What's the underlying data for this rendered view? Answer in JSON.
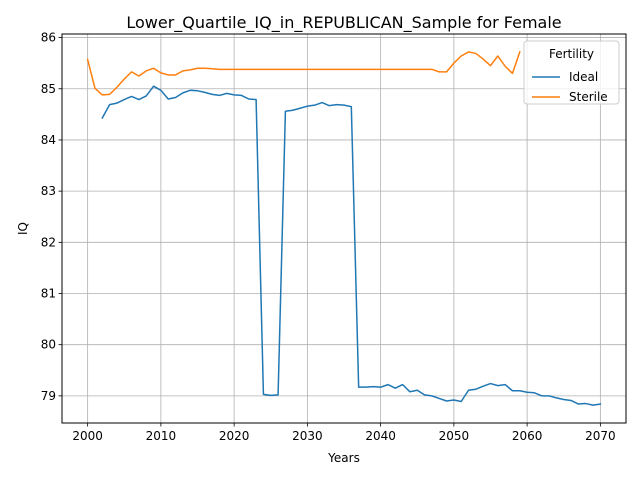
{
  "chart_data": {
    "type": "line",
    "title": "Lower_Quartile_IQ_in_REPUBLICAN_Sample for Female",
    "xlabel": "Years",
    "ylabel": "IQ",
    "xlim": [
      1996.5,
      2073.5
    ],
    "ylim": [
      78.47,
      86.07
    ],
    "x_ticks": [
      2000,
      2010,
      2020,
      2030,
      2040,
      2050,
      2060,
      2070
    ],
    "y_ticks": [
      79,
      80,
      81,
      82,
      83,
      84,
      85,
      86
    ],
    "grid": true,
    "legend": {
      "title": "Fertility",
      "position": "top-right"
    },
    "series": [
      {
        "name": "Ideal",
        "color": "#1f77b4",
        "x": [
          2002,
          2003,
          2004,
          2005,
          2006,
          2007,
          2008,
          2009,
          2010,
          2011,
          2012,
          2013,
          2014,
          2015,
          2016,
          2017,
          2018,
          2019,
          2020,
          2021,
          2022,
          2023,
          2024,
          2025,
          2026,
          2027,
          2028,
          2029,
          2030,
          2031,
          2032,
          2033,
          2034,
          2035,
          2036,
          2037,
          2038,
          2039,
          2040,
          2041,
          2042,
          2043,
          2044,
          2045,
          2046,
          2047,
          2048,
          2049,
          2050,
          2051,
          2052,
          2053,
          2054,
          2055,
          2056,
          2057,
          2058,
          2059,
          2060,
          2061,
          2062,
          2063,
          2064,
          2065,
          2066,
          2067,
          2068,
          2069,
          2070
        ],
        "y": [
          84.43,
          84.69,
          84.72,
          84.79,
          84.85,
          84.79,
          84.86,
          85.05,
          84.97,
          84.8,
          84.83,
          84.92,
          84.97,
          84.96,
          84.93,
          84.89,
          84.87,
          84.91,
          84.88,
          84.87,
          84.8,
          84.79,
          79.03,
          79.01,
          79.02,
          84.56,
          84.58,
          84.62,
          84.66,
          84.68,
          84.73,
          84.67,
          84.69,
          84.68,
          84.65,
          79.17,
          79.17,
          79.18,
          79.17,
          79.22,
          79.15,
          79.22,
          79.08,
          79.11,
          79.02,
          79.0,
          78.95,
          78.9,
          78.92,
          78.89,
          79.11,
          79.13,
          79.19,
          79.24,
          79.2,
          79.22,
          79.1,
          79.1,
          79.07,
          79.06,
          79.0,
          79.0,
          78.96,
          78.93,
          78.91,
          78.84,
          78.85,
          78.82,
          78.84
        ]
      },
      {
        "name": "Sterile",
        "color": "#ff7f0e",
        "x": [
          2000,
          2001,
          2002,
          2003,
          2004,
          2005,
          2006,
          2007,
          2008,
          2009,
          2010,
          2011,
          2012,
          2013,
          2014,
          2015,
          2016,
          2017,
          2018,
          2019,
          2020,
          2021,
          2022,
          2023,
          2024,
          2025,
          2026,
          2027,
          2028,
          2029,
          2030,
          2031,
          2032,
          2033,
          2034,
          2035,
          2036,
          2037,
          2038,
          2039,
          2040,
          2041,
          2042,
          2043,
          2044,
          2045,
          2046,
          2047,
          2048,
          2049,
          2050,
          2051,
          2052,
          2053,
          2054,
          2055,
          2056,
          2057,
          2058,
          2059
        ],
        "y": [
          85.57,
          85.01,
          84.88,
          84.89,
          85.03,
          85.19,
          85.33,
          85.25,
          85.35,
          85.4,
          85.31,
          85.27,
          85.27,
          85.35,
          85.37,
          85.4,
          85.4,
          85.39,
          85.38,
          85.38,
          85.38,
          85.38,
          85.38,
          85.38,
          85.38,
          85.38,
          85.38,
          85.38,
          85.38,
          85.38,
          85.38,
          85.38,
          85.38,
          85.38,
          85.38,
          85.38,
          85.38,
          85.38,
          85.38,
          85.38,
          85.38,
          85.38,
          85.38,
          85.38,
          85.38,
          85.38,
          85.38,
          85.38,
          85.33,
          85.33,
          85.5,
          85.64,
          85.72,
          85.69,
          85.58,
          85.45,
          85.64,
          85.44,
          85.3,
          85.72
        ]
      }
    ]
  }
}
